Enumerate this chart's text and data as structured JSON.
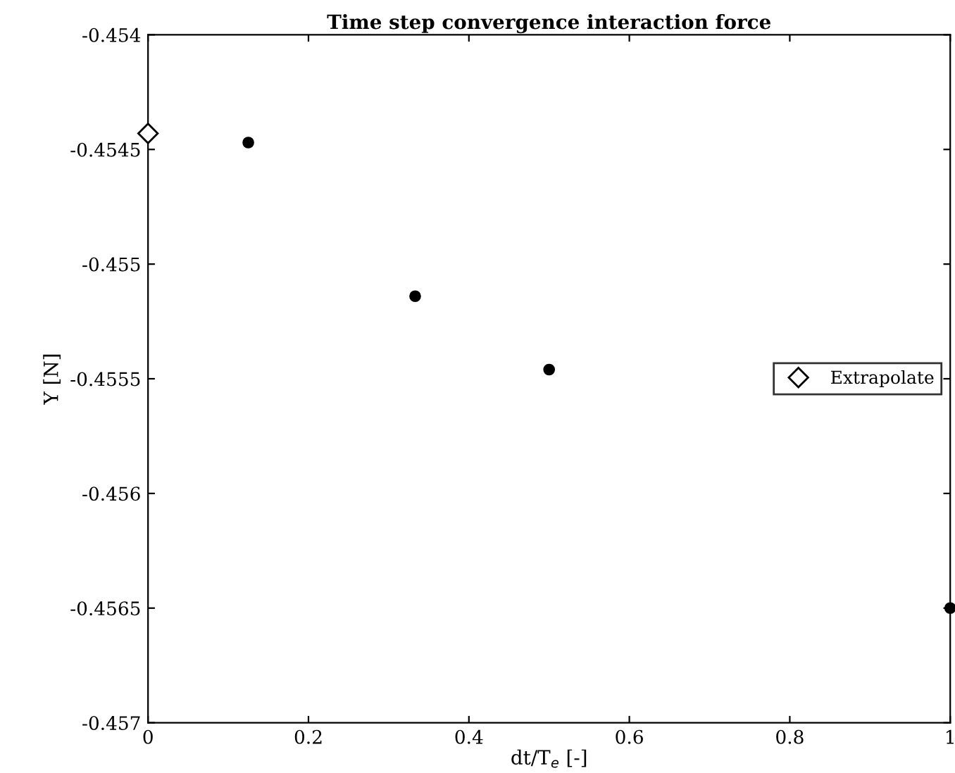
{
  "chart_data": {
    "type": "scatter",
    "title": "Time step convergence interaction force",
    "xlabel": "dt/T$_{e}$ [-]",
    "ylabel": "Y [N]",
    "series": [
      {
        "color": "#000000",
        "marker": "circle",
        "x": [
          0.125,
          0.333,
          0.5,
          1.0
        ],
        "values": [
          -0.45447,
          -0.45514,
          -0.45546,
          -0.4565
        ]
      },
      {
        "name": "Extrapolate",
        "color": "#000000",
        "marker": "diamond",
        "x": [
          0.0
        ],
        "values": [
          -0.45443
        ]
      }
    ],
    "xlim": [
      0,
      1
    ],
    "xticks": [
      0,
      0.2,
      0.4,
      0.6,
      0.8,
      1
    ],
    "ylim": [
      -0.457,
      -0.454
    ],
    "yticks": [
      -0.457,
      -0.4565,
      -0.456,
      -0.4555,
      -0.455,
      -0.4545,
      -0.454
    ],
    "grid": false,
    "legend": "right"
  }
}
